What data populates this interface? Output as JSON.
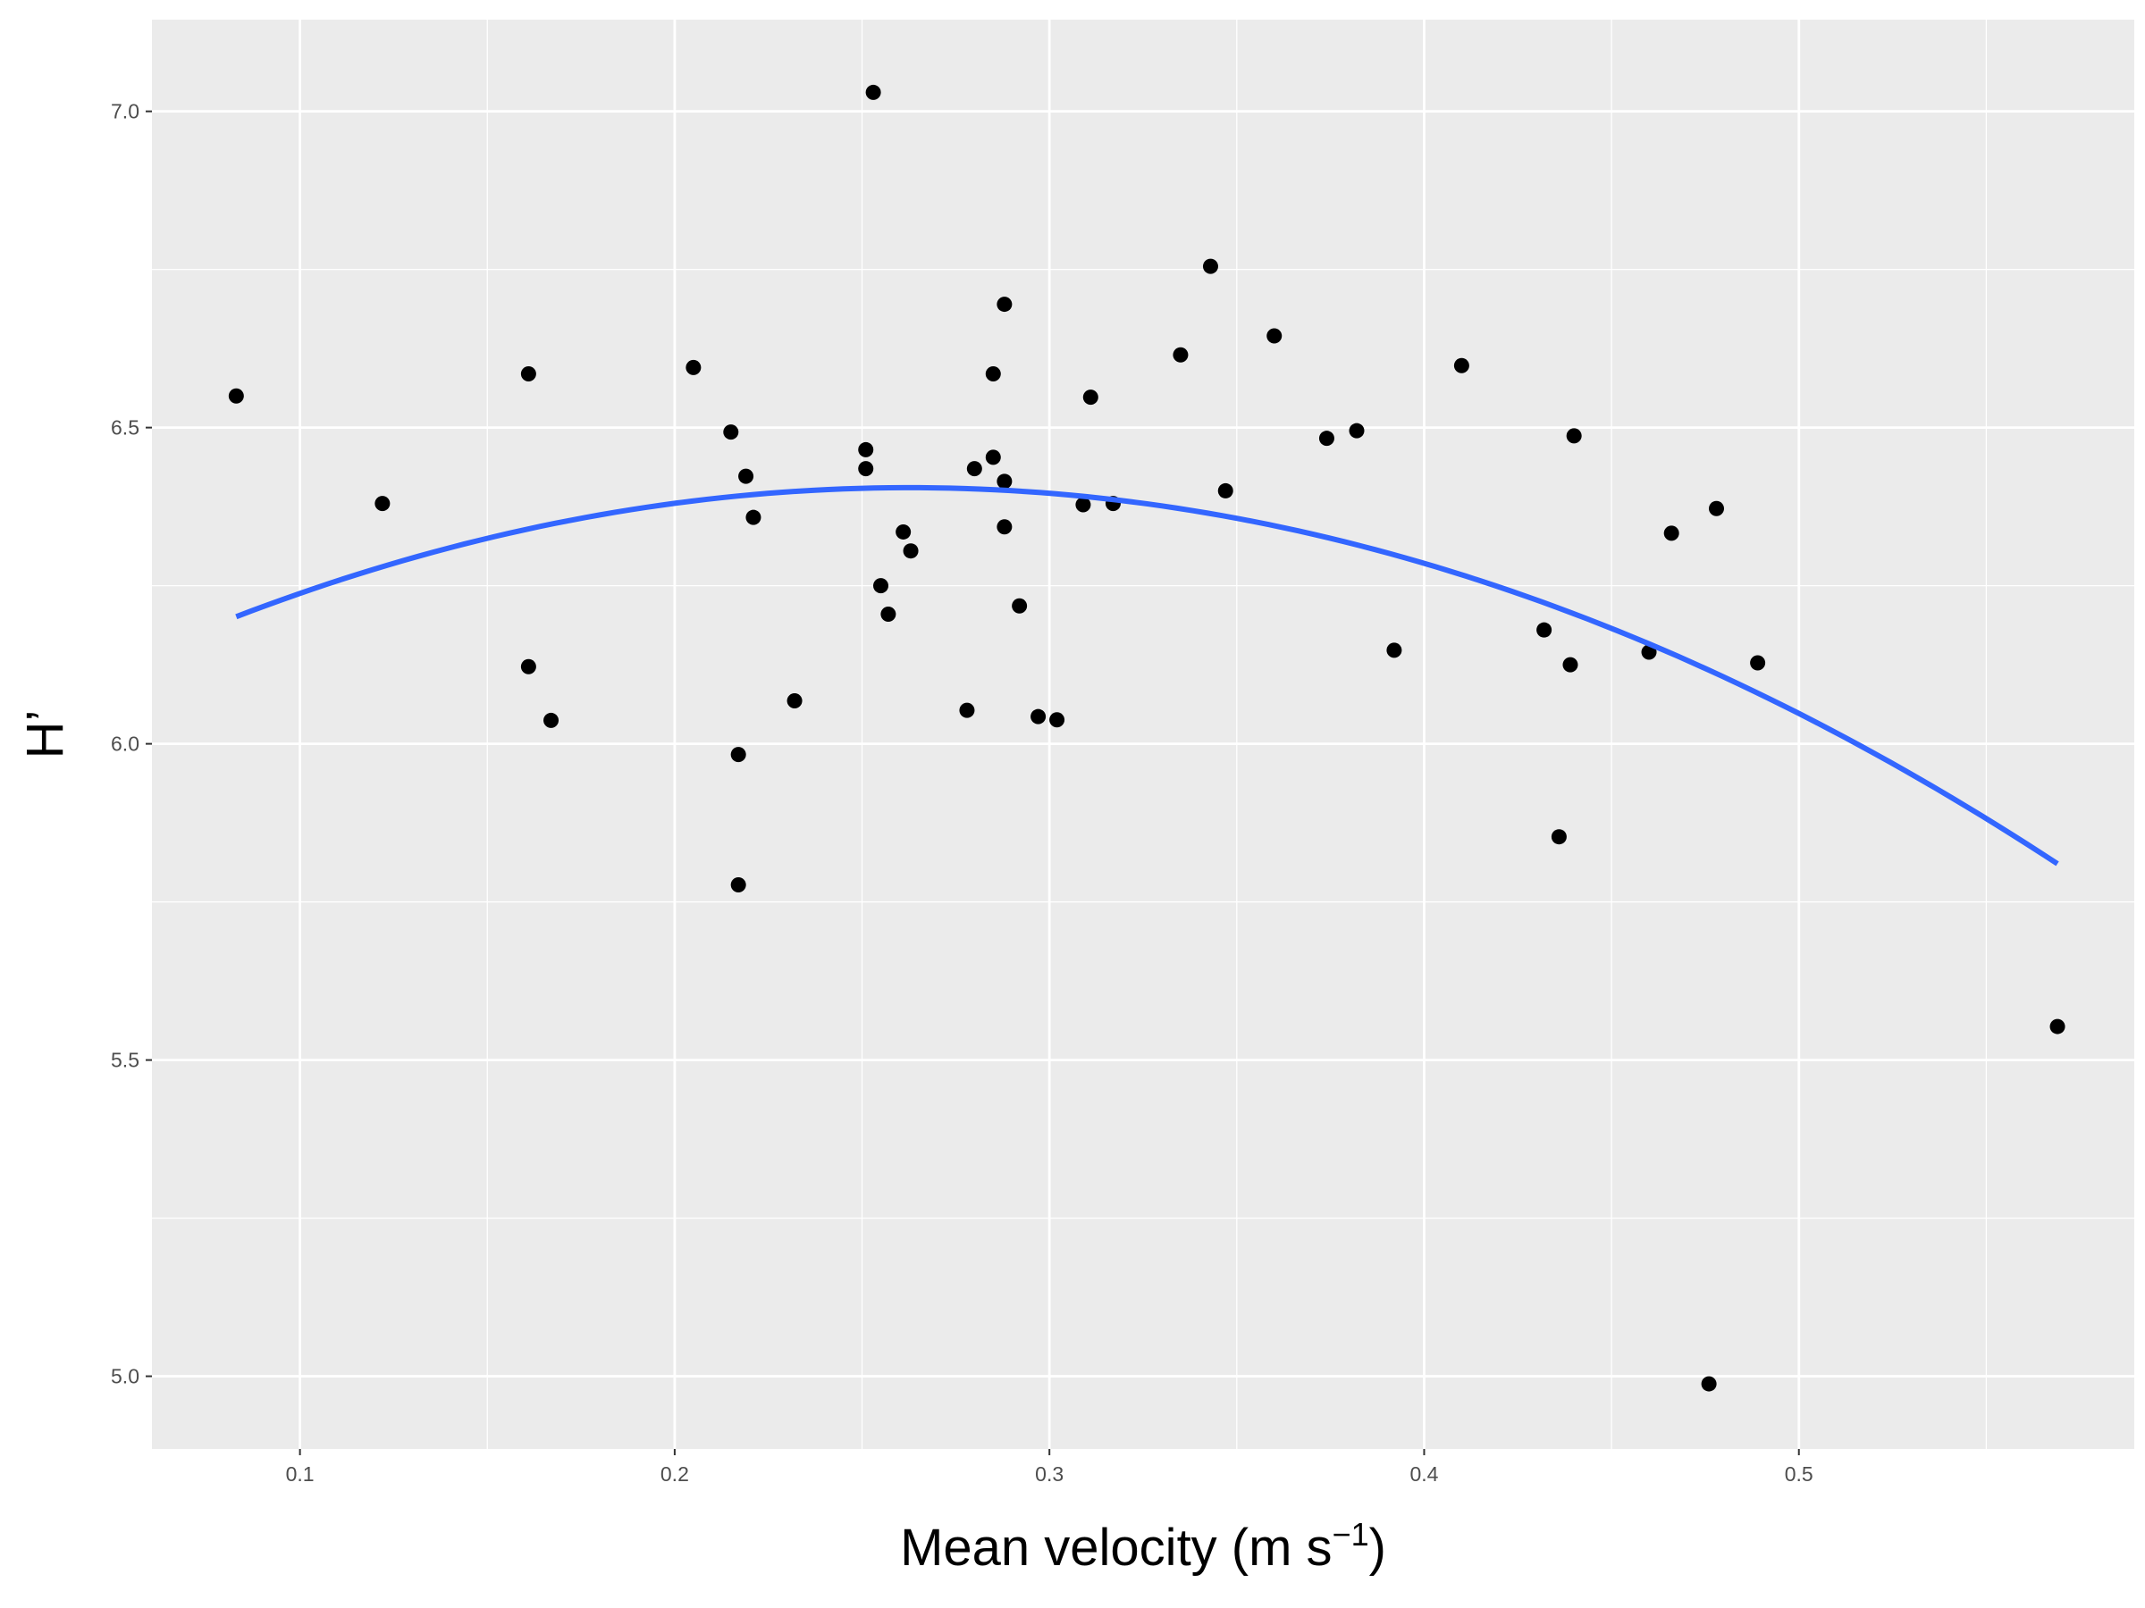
{
  "chart_data": {
    "type": "scatter",
    "title": "",
    "xlabel": {
      "main": "Mean velocity (m s",
      "sup": "−1",
      "close": ")"
    },
    "ylabel": "H’",
    "xlim": [
      0.0605,
      0.5895
    ],
    "ylim": [
      4.885,
      7.145
    ],
    "x_ticks": [
      0.1,
      0.2,
      0.3,
      0.4,
      0.5
    ],
    "x_tick_labels": [
      "0.1",
      "0.2",
      "0.3",
      "0.4",
      "0.5"
    ],
    "y_ticks": [
      5.0,
      5.5,
      6.0,
      6.5,
      7.0
    ],
    "y_tick_labels": [
      "5.0",
      "5.5",
      "6.0",
      "6.5",
      "7.0"
    ],
    "grid": true,
    "legend": "none",
    "colors": {
      "panel": "#ebebeb",
      "grid": "#ffffff",
      "points": "#000000",
      "fit": "#3366ff"
    },
    "series": [
      {
        "values": [
          [
            0.083,
            6.55
          ],
          [
            0.122,
            6.38
          ],
          [
            0.161,
            6.585
          ],
          [
            0.161,
            6.122
          ],
          [
            0.167,
            6.037
          ],
          [
            0.205,
            6.595
          ],
          [
            0.215,
            6.493
          ],
          [
            0.217,
            5.983
          ],
          [
            0.217,
            5.777
          ],
          [
            0.219,
            6.423
          ],
          [
            0.221,
            6.358
          ],
          [
            0.232,
            6.068
          ],
          [
            0.251,
            6.465
          ],
          [
            0.251,
            6.435
          ],
          [
            0.253,
            7.03
          ],
          [
            0.255,
            6.25
          ],
          [
            0.257,
            6.205
          ],
          [
            0.261,
            6.335
          ],
          [
            0.263,
            6.305
          ],
          [
            0.278,
            6.053
          ],
          [
            0.28,
            6.435
          ],
          [
            0.285,
            6.453
          ],
          [
            0.285,
            6.585
          ],
          [
            0.288,
            6.695
          ],
          [
            0.288,
            6.415
          ],
          [
            0.288,
            6.343
          ],
          [
            0.292,
            6.218
          ],
          [
            0.297,
            6.043
          ],
          [
            0.302,
            6.038
          ],
          [
            0.309,
            6.378
          ],
          [
            0.311,
            6.548
          ],
          [
            0.317,
            6.38
          ],
          [
            0.335,
            6.615
          ],
          [
            0.343,
            6.755
          ],
          [
            0.347,
            6.4
          ],
          [
            0.36,
            6.645
          ],
          [
            0.374,
            6.483
          ],
          [
            0.382,
            6.495
          ],
          [
            0.392,
            6.148
          ],
          [
            0.41,
            6.598
          ],
          [
            0.432,
            6.18
          ],
          [
            0.436,
            5.853
          ],
          [
            0.439,
            6.125
          ],
          [
            0.44,
            6.487
          ],
          [
            0.46,
            6.145
          ],
          [
            0.466,
            6.333
          ],
          [
            0.476,
            4.988
          ],
          [
            0.478,
            6.372
          ],
          [
            0.489,
            6.128
          ],
          [
            0.569,
            5.553
          ]
        ]
      }
    ],
    "fit": {
      "type": "quadratic",
      "x_range": [
        0.083,
        0.569
      ],
      "x_peak": 0.2625,
      "y_peak": 6.405,
      "curvature": -6.33
    }
  }
}
